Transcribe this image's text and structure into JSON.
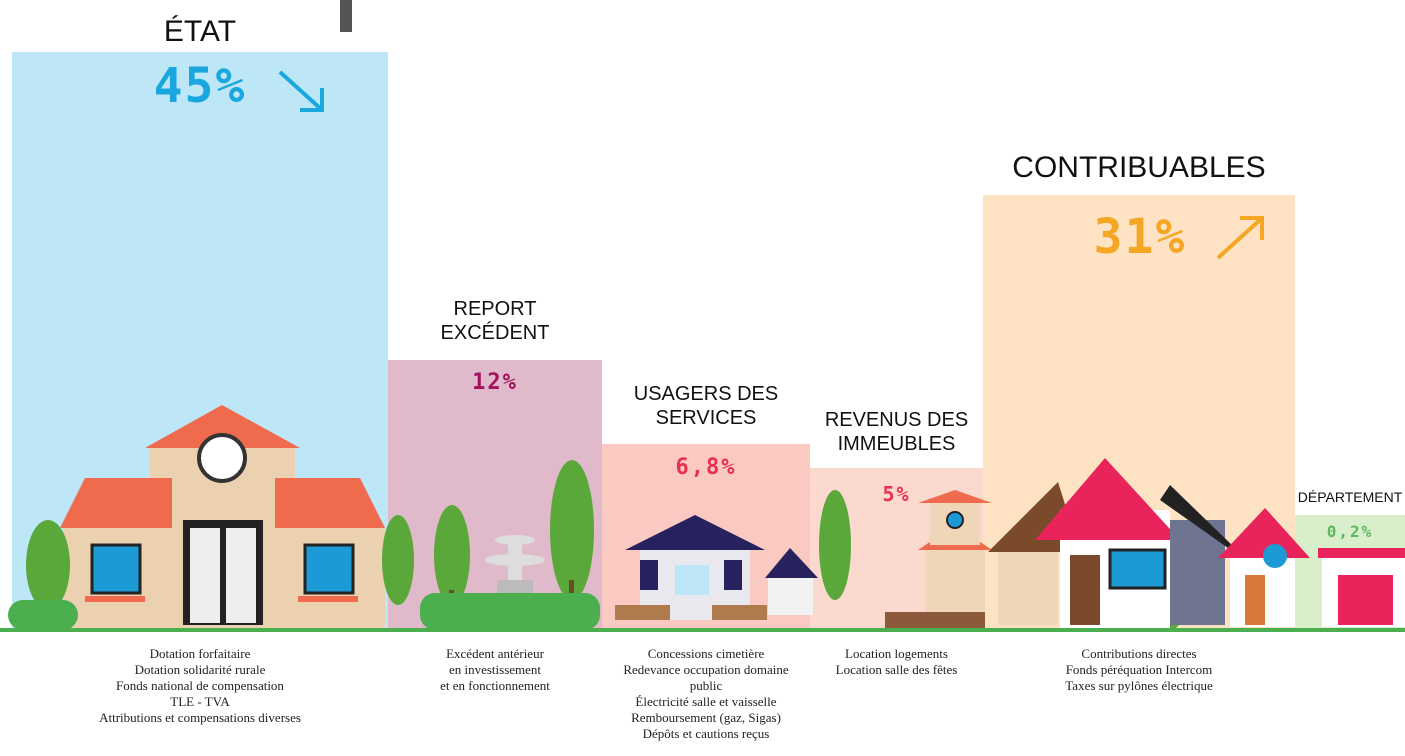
{
  "sections": [
    {
      "title_lines": [
        "ÉTAT"
      ],
      "percent": "45%",
      "items": [
        "Dotation forfaitaire",
        "Dotation solidarité rurale",
        "Fonds national de compensation",
        "TLE - TVA",
        "Attributions et compensations diverses"
      ]
    },
    {
      "title_lines": [
        "REPORT",
        "EXCÉDENT"
      ],
      "percent": "12%",
      "items": [
        "Excédent antérieur",
        "en investissement",
        "et en fonctionnement"
      ]
    },
    {
      "title_lines": [
        "USAGERS DES",
        "SERVICES"
      ],
      "percent": "6,8%",
      "items": [
        "Concessions cimetière",
        "Redevance occupation domaine public",
        "Électricité salle et vaisselle",
        "Remboursement (gaz, Sigas)",
        "Dépôts et cautions reçus"
      ]
    },
    {
      "title_lines": [
        "REVENUS DES",
        "IMMEUBLES"
      ],
      "percent": "5%",
      "items": [
        "Location logements",
        "Location salle des fêtes"
      ]
    },
    {
      "title_lines": [
        "CONTRIBUABLES"
      ],
      "percent": "31%",
      "items": [
        "Contributions directes",
        "Fonds péréquation Intercom",
        "Taxes sur pylônes électrique"
      ]
    },
    {
      "title_lines": [
        "DÉPARTEMENT"
      ],
      "percent": "0,2%",
      "items": []
    }
  ]
}
